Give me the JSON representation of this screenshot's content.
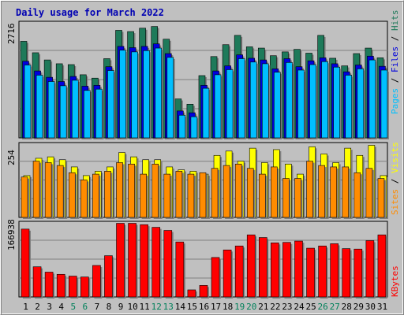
{
  "chart_data": [
    {
      "type": "bar",
      "title": "Daily usage for March 2022",
      "categories": [
        "1",
        "2",
        "3",
        "4",
        "5",
        "6",
        "7",
        "8",
        "9",
        "10",
        "11",
        "12",
        "13",
        "14",
        "15",
        "16",
        "17",
        "18",
        "19",
        "20",
        "21",
        "22",
        "23",
        "24",
        "25",
        "26",
        "27",
        "28",
        "29",
        "30",
        "31"
      ],
      "weekend_days": [
        "5",
        "6",
        "12",
        "13",
        "19",
        "20",
        "26",
        "27"
      ],
      "ymax_label": "2716",
      "ylim": [
        0,
        2716
      ],
      "ylabel_parts": [
        "Pages",
        "Files",
        "Hits"
      ],
      "series": [
        {
          "name": "Hits",
          "color": "#1e7a5a",
          "values": [
            2280,
            2010,
            1840,
            1750,
            1730,
            1490,
            1410,
            1870,
            2540,
            2510,
            2590,
            2630,
            2330,
            919,
            794,
            1470,
            1920,
            2200,
            2420,
            2150,
            2120,
            1940,
            2030,
            2090,
            2000,
            2420,
            1880,
            1700,
            1990,
            2120,
            1890
          ]
        },
        {
          "name": "Files",
          "color": "#0000dd",
          "values": [
            1810,
            1580,
            1430,
            1330,
            1450,
            1220,
            1240,
            1680,
            2160,
            2130,
            2160,
            2220,
            1990,
            635,
            592,
            1240,
            1580,
            1700,
            1960,
            1880,
            1840,
            1630,
            1870,
            1680,
            1820,
            1890,
            1750,
            1560,
            1720,
            1930,
            1690
          ]
        },
        {
          "name": "Pages",
          "color": "#00bfff",
          "values": [
            1720,
            1480,
            1330,
            1230,
            1360,
            1120,
            1150,
            1590,
            2070,
            2030,
            2060,
            2120,
            1900,
            535,
            499,
            1170,
            1490,
            1610,
            1870,
            1790,
            1750,
            1550,
            1780,
            1600,
            1730,
            1800,
            1670,
            1480,
            1630,
            1840,
            1600
          ]
        }
      ]
    },
    {
      "type": "bar",
      "categories": [
        "1",
        "2",
        "3",
        "4",
        "5",
        "6",
        "7",
        "8",
        "9",
        "10",
        "11",
        "12",
        "13",
        "14",
        "15",
        "16",
        "17",
        "18",
        "19",
        "20",
        "21",
        "22",
        "23",
        "24",
        "25",
        "26",
        "27",
        "28",
        "29",
        "30",
        "31"
      ],
      "ymax_label": "254",
      "ylim": [
        0,
        254
      ],
      "ylabel_parts": [
        "Sites",
        "Visits"
      ],
      "series": [
        {
          "name": "Visits",
          "color": "#ffff00",
          "values": [
            145,
            205,
            210,
            200,
            175,
            145,
            160,
            175,
            225,
            210,
            200,
            200,
            175,
            165,
            160,
            150,
            215,
            230,
            195,
            240,
            190,
            235,
            185,
            150,
            245,
            220,
            190,
            240,
            215,
            250,
            145
          ]
        },
        {
          "name": "Sites",
          "color": "#ff8c00",
          "values": [
            140,
            195,
            190,
            180,
            155,
            130,
            150,
            160,
            190,
            185,
            150,
            185,
            150,
            160,
            150,
            155,
            170,
            180,
            185,
            170,
            150,
            175,
            135,
            135,
            195,
            180,
            175,
            175,
            155,
            170,
            135
          ]
        }
      ]
    },
    {
      "type": "bar",
      "categories": [
        "1",
        "2",
        "3",
        "4",
        "5",
        "6",
        "7",
        "8",
        "9",
        "10",
        "11",
        "12",
        "13",
        "14",
        "15",
        "16",
        "17",
        "18",
        "19",
        "20",
        "21",
        "22",
        "23",
        "24",
        "25",
        "26",
        "27",
        "28",
        "29",
        "30",
        "31"
      ],
      "ymax_label": "166938",
      "ylim": [
        0,
        166938
      ],
      "ylabel_parts": [
        "KBytes"
      ],
      "series": [
        {
          "name": "KBytes",
          "color": "#ff0000",
          "values": [
            153000,
            68000,
            56000,
            51000,
            47000,
            45000,
            71000,
            93000,
            166000,
            166000,
            163000,
            157000,
            150000,
            124000,
            16000,
            26000,
            89000,
            106000,
            115000,
            140000,
            134000,
            122000,
            123000,
            126000,
            110000,
            115000,
            120000,
            109000,
            108000,
            127000,
            140000
          ]
        }
      ]
    }
  ]
}
